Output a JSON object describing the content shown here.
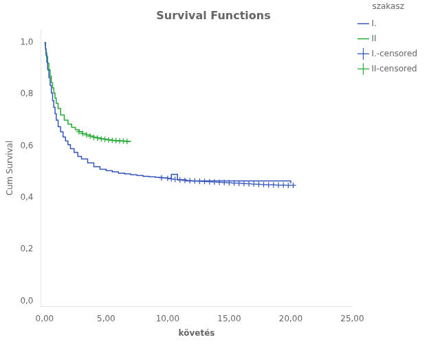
{
  "chart_data": {
    "type": "line",
    "title": "Survival Functions",
    "xlabel": "követés",
    "ylabel": "Cum Survival",
    "legend_title": "szakasz",
    "legend": "right",
    "grid": false,
    "xlim": [
      -0.3,
      25.0
    ],
    "ylim": [
      -0.02,
      1.05
    ],
    "xticks": [
      {
        "value": 0,
        "label": "0,00"
      },
      {
        "value": 5,
        "label": "5,00"
      },
      {
        "value": 10,
        "label": "10,00"
      },
      {
        "value": 15,
        "label": "15,00"
      },
      {
        "value": 20,
        "label": "20,00"
      },
      {
        "value": 25,
        "label": "25,00"
      }
    ],
    "yticks": [
      {
        "value": 0.0,
        "label": "0,0"
      },
      {
        "value": 0.2,
        "label": "0,2"
      },
      {
        "value": 0.4,
        "label": "0,4"
      },
      {
        "value": 0.6,
        "label": "0,6"
      },
      {
        "value": 0.8,
        "label": "0,8"
      },
      {
        "value": 1.0,
        "label": "1,0"
      }
    ],
    "series": [
      {
        "name": "I.",
        "type": "step",
        "color": "#3355bb",
        "x": [
          0,
          0.08,
          0.12,
          0.18,
          0.25,
          0.35,
          0.45,
          0.55,
          0.65,
          0.75,
          0.85,
          0.95,
          1.1,
          1.3,
          1.5,
          1.7,
          1.9,
          2.1,
          2.4,
          2.7,
          3.0,
          3.5,
          4.0,
          4.5,
          5.0,
          5.5,
          6.0,
          6.5,
          7.0,
          7.5,
          8.0,
          8.5,
          9.0,
          9.5,
          10.0,
          10.3,
          10.8,
          11.5,
          20.0
        ],
        "values": [
          1.0,
          0.975,
          0.95,
          0.925,
          0.895,
          0.865,
          0.835,
          0.805,
          0.775,
          0.75,
          0.725,
          0.7,
          0.675,
          0.655,
          0.635,
          0.62,
          0.605,
          0.59,
          0.575,
          0.56,
          0.55,
          0.535,
          0.52,
          0.51,
          0.505,
          0.5,
          0.495,
          0.492,
          0.489,
          0.486,
          0.483,
          0.481,
          0.479,
          0.477,
          0.475,
          0.49,
          0.47,
          0.465,
          0.455
        ]
      },
      {
        "name": "II",
        "type": "step",
        "color": "#22aa33",
        "x": [
          0,
          0.04,
          0.08,
          0.12,
          0.18,
          0.25,
          0.35,
          0.45,
          0.55,
          0.65,
          0.75,
          0.85,
          0.95,
          1.1,
          1.3,
          1.6,
          1.9,
          2.2,
          2.5,
          2.8,
          3.1,
          3.4,
          3.7,
          4.0,
          4.3,
          4.6,
          4.9,
          5.2,
          5.5,
          5.8,
          6.1,
          6.4,
          6.7,
          7.0
        ],
        "values": [
          1.0,
          0.99,
          0.975,
          0.96,
          0.945,
          0.92,
          0.895,
          0.87,
          0.845,
          0.825,
          0.805,
          0.785,
          0.765,
          0.745,
          0.72,
          0.7,
          0.685,
          0.672,
          0.663,
          0.655,
          0.648,
          0.643,
          0.638,
          0.634,
          0.631,
          0.628,
          0.626,
          0.624,
          0.622,
          0.621,
          0.62,
          0.619,
          0.618,
          0.617
        ]
      },
      {
        "name": "I.-censored",
        "type": "scatter",
        "marker": "plus",
        "color": "#3355bb",
        "x": [
          9.5,
          10.0,
          10.3,
          10.6,
          11.0,
          11.4,
          11.8,
          12.2,
          12.6,
          13.0,
          13.4,
          13.8,
          14.2,
          14.6,
          15.0,
          15.4,
          15.8,
          16.2,
          16.6,
          17.0,
          17.4,
          17.8,
          18.2,
          18.6,
          19.0,
          19.4,
          19.8,
          20.2
        ],
        "values": [
          0.477,
          0.475,
          0.473,
          0.471,
          0.469,
          0.467,
          0.466,
          0.465,
          0.464,
          0.463,
          0.462,
          0.461,
          0.46,
          0.459,
          0.458,
          0.457,
          0.456,
          0.455,
          0.454,
          0.453,
          0.452,
          0.451,
          0.45,
          0.45,
          0.449,
          0.449,
          0.448,
          0.448
        ]
      },
      {
        "name": "II-censored",
        "type": "scatter",
        "marker": "plus",
        "color": "#22aa33",
        "x": [
          2.8,
          3.1,
          3.4,
          3.7,
          4.0,
          4.3,
          4.6,
          4.9,
          5.2,
          5.5,
          5.8,
          6.1,
          6.4,
          6.7
        ],
        "values": [
          0.655,
          0.648,
          0.643,
          0.638,
          0.634,
          0.631,
          0.628,
          0.626,
          0.624,
          0.622,
          0.621,
          0.62,
          0.619,
          0.618
        ]
      }
    ]
  }
}
